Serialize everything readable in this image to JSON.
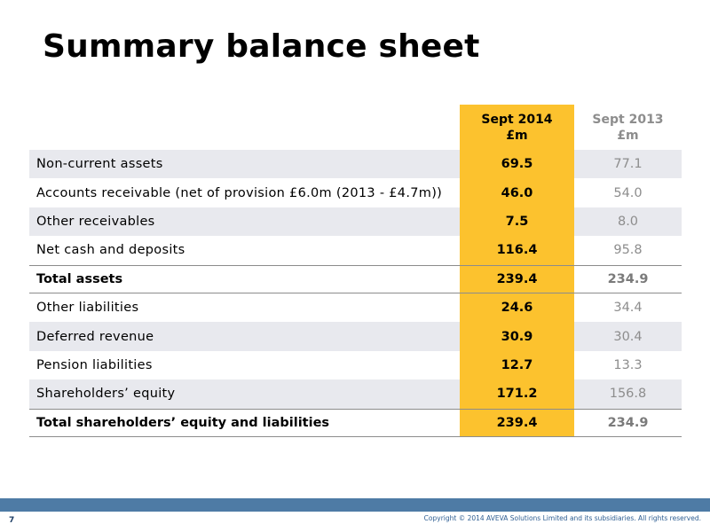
{
  "title": "Summary balance sheet",
  "header": {
    "current_line1": "Sept 2014",
    "current_line2": "£m",
    "prior_line1": "Sept 2013",
    "prior_line2": "£m"
  },
  "rows": [
    {
      "label": "Non-current assets",
      "current": "69.5",
      "prior": "77.1"
    },
    {
      "label": "Accounts receivable (net of provision £6.0m (2013 - £4.7m))",
      "current": "46.0",
      "prior": "54.0"
    },
    {
      "label": "Other receivables",
      "current": "7.5",
      "prior": "8.0"
    },
    {
      "label": "Net cash and deposits",
      "current": "116.4",
      "prior": "95.8"
    },
    {
      "label": "Total assets",
      "current": "239.4",
      "prior": "234.9"
    },
    {
      "label": "Other liabilities",
      "current": "24.6",
      "prior": "34.4"
    },
    {
      "label": "Deferred revenue",
      "current": "30.9",
      "prior": "30.4"
    },
    {
      "label": "Pension liabilities",
      "current": "12.7",
      "prior": "13.3"
    },
    {
      "label": "Shareholders’ equity",
      "current": "171.2",
      "prior": "156.8"
    },
    {
      "label": "Total shareholders’ equity and liabilities",
      "current": "239.4",
      "prior": "234.9"
    }
  ],
  "footer": {
    "copyright": "Copyright © 2014 AVEVA Solutions Limited and its subsidiaries. All rights reserved.",
    "page_number": "7"
  },
  "colors": {
    "highlight_column": "#fcc22e",
    "shaded_row": "#e8e9ee",
    "footer_bar": "#4e7ba5"
  }
}
